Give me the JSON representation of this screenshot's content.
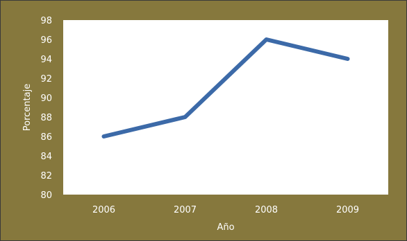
{
  "colors": {
    "background": "#86783D",
    "plot_area": "#FFFFFF",
    "series_line": "#3C6AA8",
    "text": "#FFFFFF"
  },
  "chart_data": {
    "type": "line",
    "x": [
      "2006",
      "2007",
      "2008",
      "2009"
    ],
    "series": [
      {
        "values": [
          86,
          88,
          96,
          94
        ]
      }
    ],
    "xlabel": "Año",
    "ylabel": "Porcentaje",
    "ylim": [
      80,
      98
    ],
    "yticks": [
      80,
      82,
      84,
      86,
      88,
      90,
      92,
      94,
      96,
      98
    ],
    "grid": false,
    "legend": "none"
  }
}
